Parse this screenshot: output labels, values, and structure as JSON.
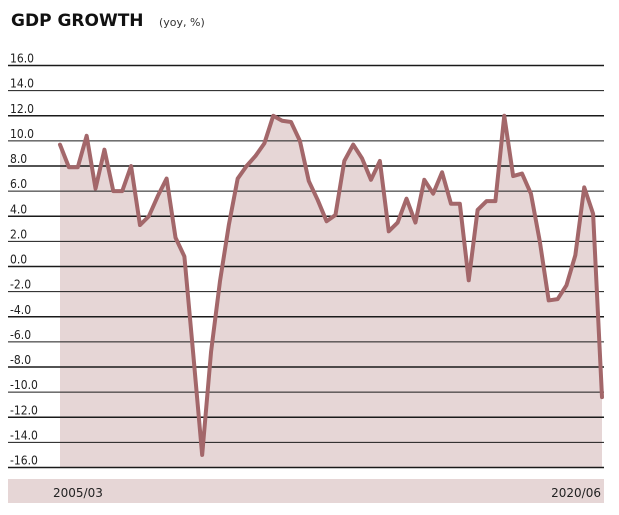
{
  "chart_data": {
    "type": "area",
    "title": "GDP GROWTH",
    "subtitle": "(yoy, %)",
    "xlabel": "",
    "ylabel": "",
    "ylim": [
      -16,
      16
    ],
    "y_ticks": [
      "16.0",
      "14.0",
      "12.0",
      "10.0",
      "8.0",
      "6.0",
      "4.0",
      "2.0",
      "0.0",
      "-2.0",
      "-4.0",
      "-6.0",
      "-8.0",
      "-10.0",
      "-12.0",
      "-14.0",
      "-16.0"
    ],
    "x_range_labels": [
      "2005/03",
      "2020/06"
    ],
    "grid": true,
    "series": [
      {
        "values": [
          9.7,
          7.9,
          7.9,
          10.4,
          6.2,
          9.3,
          6.0,
          6.0,
          8.0,
          3.3,
          4.0,
          5.6,
          7.0,
          2.3,
          0.8,
          -7.0,
          -15.0,
          -6.8,
          -1.2,
          3.3,
          7.0,
          8.0,
          8.8,
          9.8,
          12.0,
          11.6,
          11.5,
          10.0,
          6.8,
          5.3,
          3.6,
          4.1,
          8.4,
          9.7,
          8.6,
          6.9,
          8.4,
          2.8,
          3.5,
          5.4,
          3.5,
          6.9,
          5.8,
          7.5,
          5.0,
          5.0,
          -1.1,
          4.5,
          5.2,
          5.2,
          12.0,
          7.2,
          7.4,
          5.8,
          2.0,
          -2.7,
          -2.6,
          -1.5,
          0.9,
          6.3,
          4.2,
          -10.4
        ]
      }
    ],
    "colors": {
      "line": "#A3676A",
      "fill": "#E6D6D6",
      "footer": "#E6D6D6",
      "grid": "#1a1a1a"
    }
  }
}
